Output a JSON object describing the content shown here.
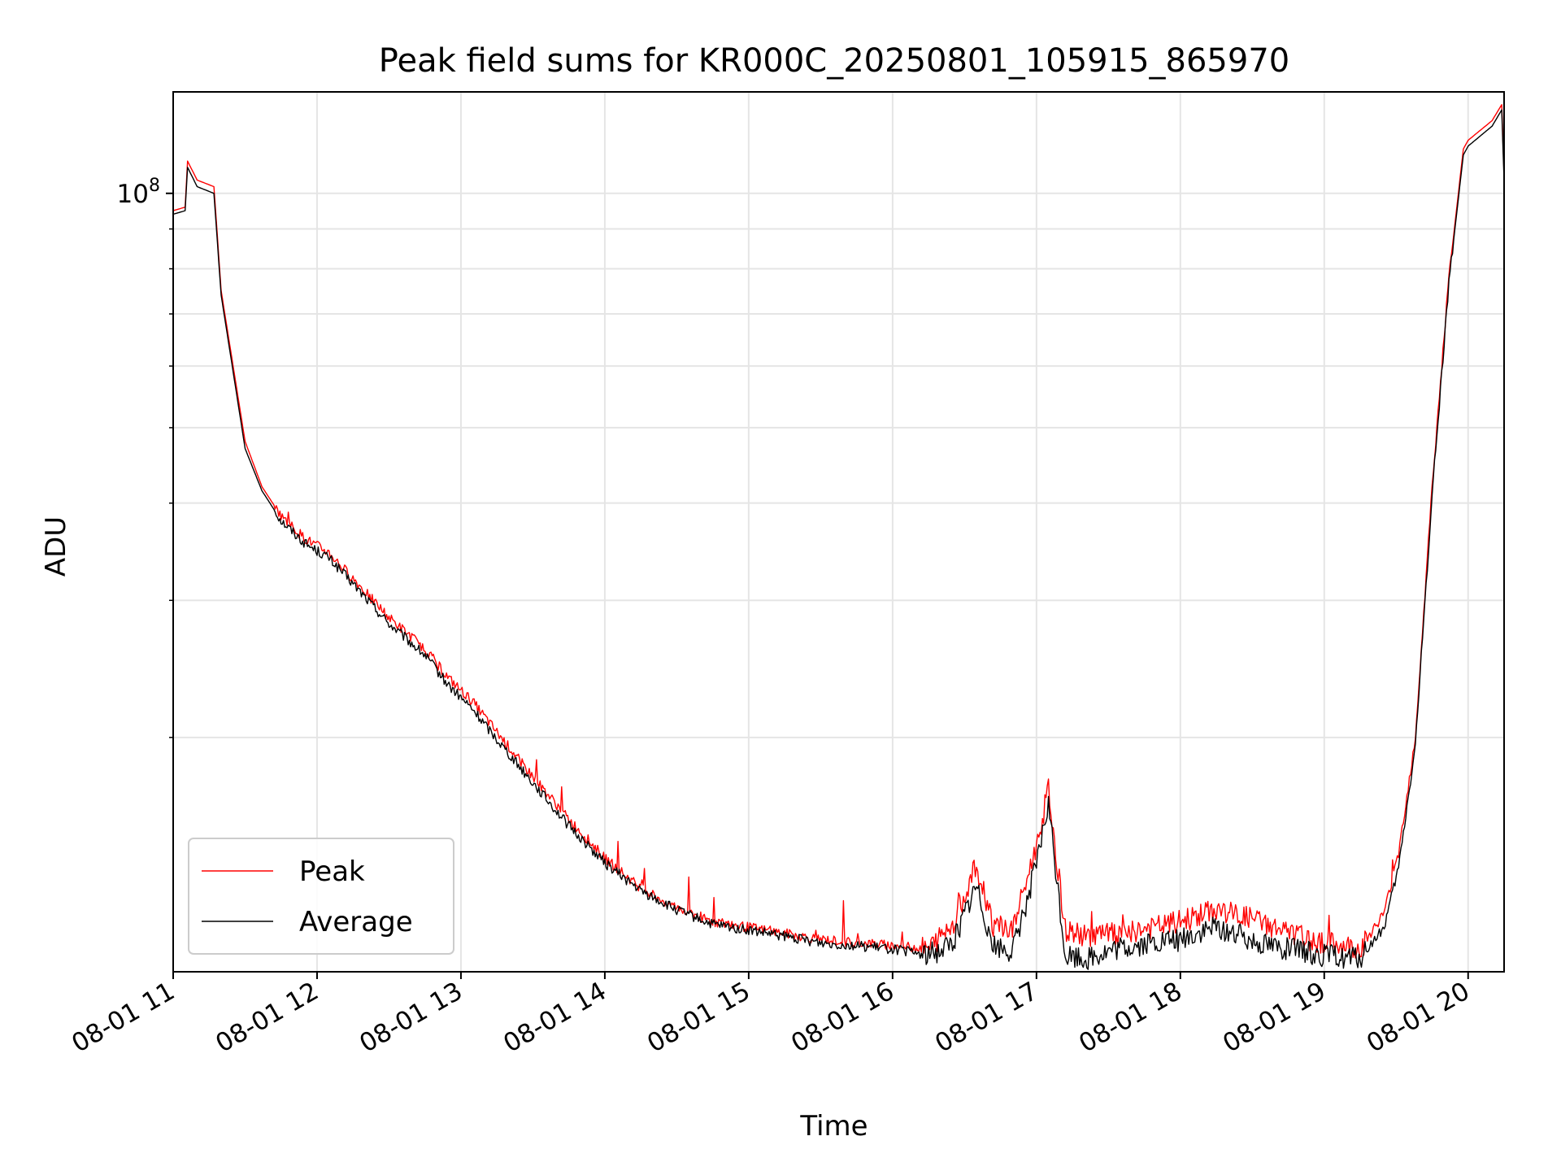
{
  "chart_data": {
    "type": "line",
    "title": "Peak field sums for KR000C_20250801_105915_865970",
    "xlabel": "Time",
    "ylabel": "ADU",
    "x_tick_labels": [
      "08-01 11",
      "08-01 12",
      "08-01 13",
      "08-01 14",
      "08-01 15",
      "08-01 16",
      "08-01 17",
      "08-01 18",
      "08-01 19",
      "08-01 20"
    ],
    "y_tick_label_base": "10",
    "y_tick_label_exp": "8",
    "yscale": "log",
    "xlim": [
      "2025-08-01 11:00",
      "2025-08-01 20:15"
    ],
    "ylim": [
      10000000,
      135000000
    ],
    "grid": true,
    "legend_position": "lower-left",
    "series": [
      {
        "name": "Peak",
        "color": "#ff0000",
        "x": [
          "11:00",
          "11:05",
          "11:06",
          "11:10",
          "11:17",
          "11:20",
          "11:25",
          "11:30",
          "11:37",
          "11:45",
          "11:55",
          "12:05",
          "12:15",
          "12:30",
          "12:45",
          "12:55",
          "13:05",
          "13:15",
          "13:30",
          "13:45",
          "14:00",
          "14:15",
          "14:30",
          "14:45",
          "15:00",
          "15:15",
          "15:30",
          "15:45",
          "16:00",
          "16:15",
          "16:25",
          "16:35",
          "16:42",
          "16:50",
          "17:00",
          "17:05",
          "17:12",
          "17:20",
          "17:35",
          "17:50",
          "18:00",
          "18:15",
          "18:30",
          "18:45",
          "19:00",
          "19:15",
          "19:25",
          "19:31",
          "19:38",
          "19:45",
          "19:52",
          "19:58",
          "20:00",
          "20:10",
          "20:14",
          "20:15"
        ],
        "y": [
          95000000,
          96000000,
          110000000,
          104000000,
          102000000,
          75000000,
          60000000,
          48000000,
          42000000,
          38500000,
          36000000,
          34500000,
          32000000,
          28500000,
          26000000,
          23800000,
          22200000,
          20300000,
          17800000,
          15700000,
          14000000,
          12800000,
          12100000,
          11600000,
          11400000,
          11200000,
          11000000,
          10900000,
          10800000,
          10700000,
          11500000,
          13700000,
          11500000,
          11300000,
          14500000,
          17200000,
          11300000,
          11100000,
          11200000,
          11400000,
          11600000,
          12000000,
          11700000,
          11200000,
          10900000,
          10700000,
          11900000,
          14200000,
          20000000,
          42000000,
          78000000,
          114000000,
          117000000,
          124000000,
          130000000,
          106000000
        ]
      },
      {
        "name": "Average",
        "color": "#000000",
        "x": [
          "11:00",
          "11:05",
          "11:06",
          "11:10",
          "11:17",
          "11:20",
          "11:25",
          "11:30",
          "11:37",
          "11:45",
          "11:55",
          "12:05",
          "12:15",
          "12:30",
          "12:45",
          "12:55",
          "13:05",
          "13:15",
          "13:30",
          "13:45",
          "14:00",
          "14:15",
          "14:30",
          "14:45",
          "15:00",
          "15:15",
          "15:30",
          "15:45",
          "16:00",
          "16:15",
          "16:25",
          "16:35",
          "16:42",
          "16:50",
          "17:00",
          "17:05",
          "17:12",
          "17:20",
          "17:35",
          "17:50",
          "18:00",
          "18:15",
          "18:30",
          "18:45",
          "19:00",
          "19:15",
          "19:25",
          "19:31",
          "19:38",
          "19:45",
          "19:52",
          "19:58",
          "20:00",
          "20:10",
          "20:14",
          "20:15"
        ],
        "y": [
          94000000,
          95000000,
          108000000,
          102000000,
          100000000,
          74000000,
          59000000,
          47000000,
          41500000,
          38000000,
          35500000,
          34000000,
          31500000,
          28000000,
          25500000,
          23300000,
          21700000,
          19900000,
          17500000,
          15400000,
          13800000,
          12700000,
          12000000,
          11500000,
          11300000,
          11100000,
          10900000,
          10800000,
          10700000,
          10500000,
          10900000,
          12900000,
          10800000,
          10600000,
          13700000,
          16400000,
          10500000,
          10400000,
          10700000,
          10900000,
          11000000,
          11400000,
          11000000,
          10700000,
          10500000,
          10400000,
          11400000,
          13600000,
          19500000,
          41000000,
          77000000,
          112000000,
          115000000,
          122000000,
          128000000,
          104000000
        ]
      }
    ]
  }
}
